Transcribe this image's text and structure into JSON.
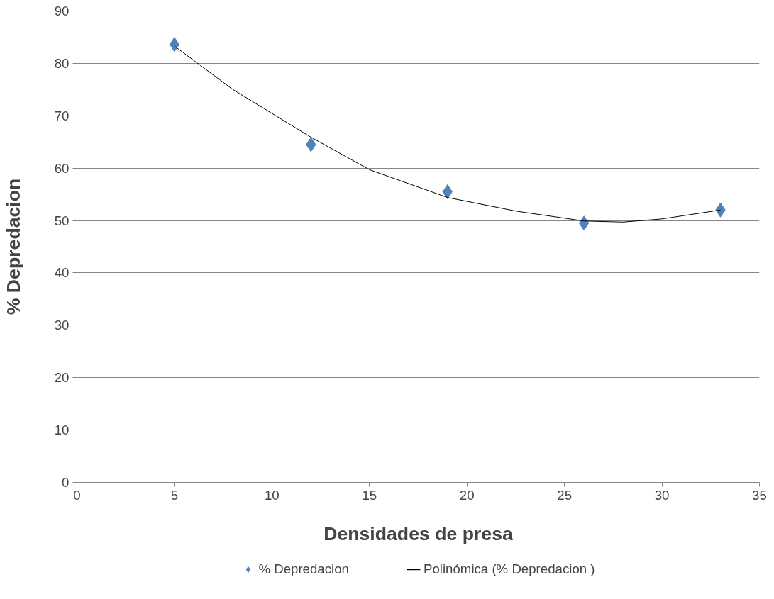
{
  "chart_data": {
    "type": "scatter",
    "xlabel": "Densidades de presa",
    "ylabel": "% Depredacion",
    "x": [
      5,
      12,
      19,
      26,
      33
    ],
    "series": [
      {
        "name": "% Depredacion",
        "type": "scatter",
        "color": "#4f81bd",
        "marker": "diamond",
        "values": [
          83.6,
          64.5,
          55.5,
          49.5,
          52.0
        ]
      },
      {
        "name": "Polinómica (% Depredacion )",
        "type": "line",
        "color": "#000000",
        "x": [
          5,
          8,
          12,
          15,
          19,
          22.5,
          26,
          28,
          30,
          33
        ],
        "values": [
          83.3,
          75.0,
          65.9,
          59.7,
          54.4,
          51.8,
          49.9,
          49.7,
          50.3,
          52.0
        ]
      }
    ],
    "xlim": [
      0,
      35
    ],
    "xticks": [
      0,
      5,
      10,
      15,
      20,
      25,
      30,
      35
    ],
    "ylim": [
      0,
      90
    ],
    "yticks": [
      0,
      10,
      20,
      30,
      40,
      50,
      60,
      70,
      80,
      90
    ],
    "grid": "y",
    "legend": "bottom"
  }
}
